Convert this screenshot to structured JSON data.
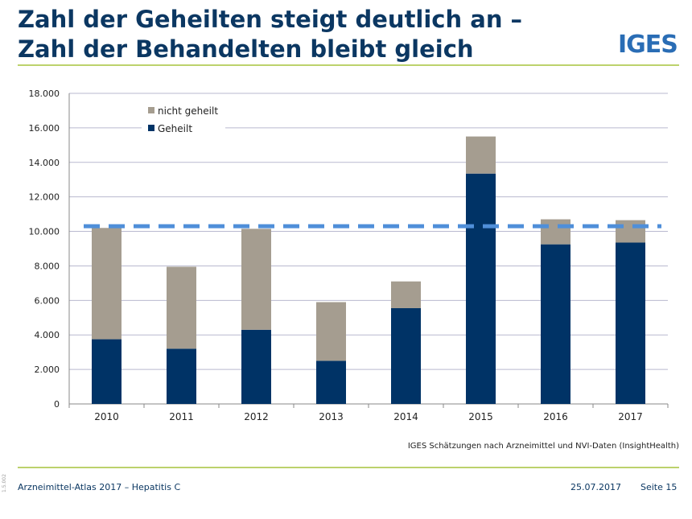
{
  "slide": {
    "title_line1": "Zahl der Geheilten steigt deutlich an –",
    "title_line2": "Zahl der Behandelten bleibt gleich",
    "logo_text": "IGES",
    "source_note": "IGES Schätzungen nach Arzneimittel und NVI-Daten (InsightHealth)",
    "footer_left": "Arzneimittel-Atlas 2017 – Hepatitis C",
    "footer_date": "25.07.2017",
    "footer_page": "Seite 15",
    "side_code": "1.5.002"
  },
  "colors": {
    "title": "#0b3762",
    "geheilt": "#003366",
    "nicht_geheilt": "#a59d90",
    "reference_line": "#4f8fd9",
    "gridline": "#b9b9cf",
    "accent_rule": "#bcd26c",
    "logo": "#2a6db5"
  },
  "chart_data": {
    "type": "bar",
    "stacked": true,
    "categories": [
      "2010",
      "2011",
      "2012",
      "2013",
      "2014",
      "2015",
      "2016",
      "2017"
    ],
    "series": [
      {
        "name": "Geheilt",
        "values": [
          3750,
          3200,
          4300,
          2500,
          5550,
          13350,
          9250,
          9350
        ]
      },
      {
        "name": "nicht geheilt",
        "values": [
          6450,
          4750,
          5850,
          3400,
          1550,
          2150,
          1450,
          1300
        ]
      }
    ],
    "reference_line": {
      "value": 10300,
      "style": "dashed"
    },
    "ylim": [
      0,
      18000
    ],
    "yticks": [
      0,
      2000,
      4000,
      6000,
      8000,
      10000,
      12000,
      14000,
      16000,
      18000
    ],
    "ytick_labels": [
      "0",
      "2.000",
      "4.000",
      "6.000",
      "8.000",
      "10.000",
      "12.000",
      "14.000",
      "16.000",
      "18.000"
    ],
    "grid": true,
    "legend_position": "top-left",
    "legend_order": [
      "nicht geheilt",
      "Geheilt"
    ]
  }
}
